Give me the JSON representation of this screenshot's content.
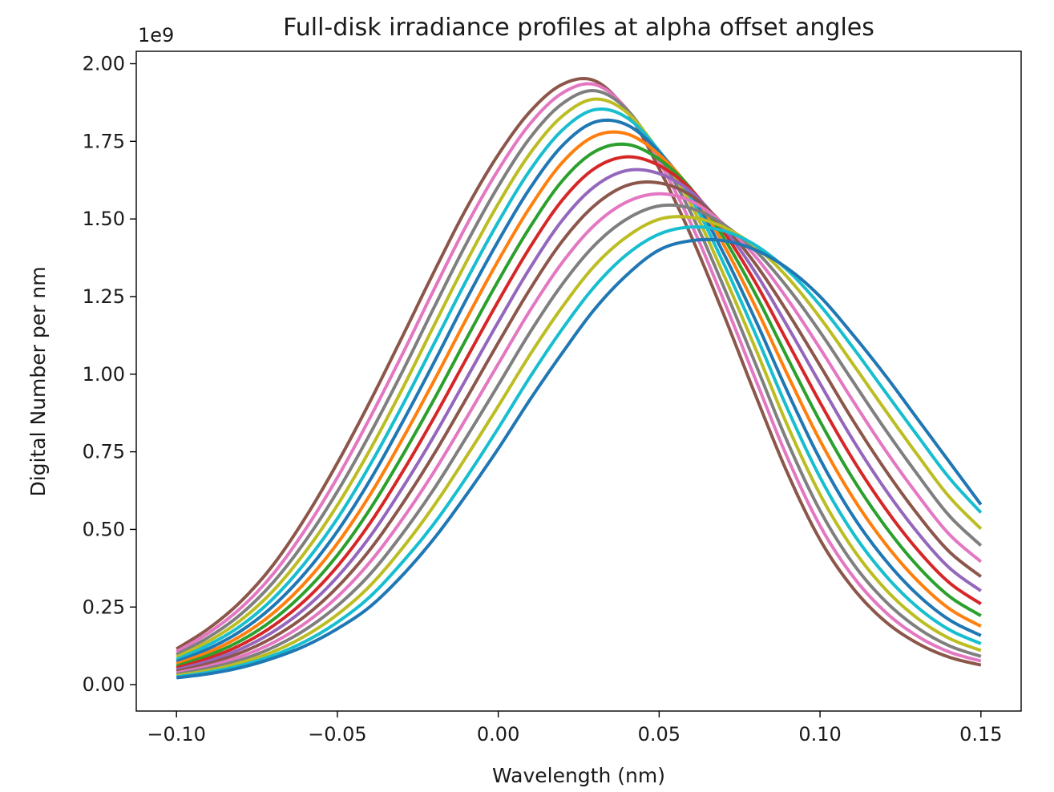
{
  "chart_data": {
    "type": "line",
    "title": "Full-disk irradiance profiles at alpha offset angles",
    "xlabel": "Wavelength (nm)",
    "ylabel": "Digital Number per nm",
    "y_scale_label": "1e9",
    "y_scale_factor": 1000000000,
    "xlim": [
      -0.1125,
      0.1625
    ],
    "ylim": [
      -0.085,
      2.04
    ],
    "x_ticks": [
      -0.1,
      -0.05,
      0.0,
      0.05,
      0.1,
      0.15
    ],
    "x_tick_labels": [
      "−0.10",
      "−0.05",
      "0.00",
      "0.05",
      "0.10",
      "0.15"
    ],
    "y_ticks": [
      0.0,
      0.25,
      0.5,
      0.75,
      1.0,
      1.25,
      1.5,
      1.75,
      2.0
    ],
    "y_tick_labels": [
      "0.00",
      "0.25",
      "0.50",
      "0.75",
      "1.00",
      "1.25",
      "1.50",
      "1.75",
      "2.00"
    ],
    "x_range": [
      -0.1,
      0.15
    ],
    "grid": false,
    "legend": "none",
    "colors": [
      "#1f77b4",
      "#ff7f0e",
      "#2ca02c",
      "#d62728",
      "#9467bd",
      "#8c564b",
      "#e377c2",
      "#7f7f7f",
      "#bcbd22",
      "#17becf"
    ],
    "series_x": [
      -0.1,
      -0.09,
      -0.08,
      -0.07,
      -0.06,
      -0.05,
      -0.04,
      -0.03,
      -0.02,
      -0.01,
      0.0,
      0.01,
      0.02,
      0.03,
      0.04,
      0.05,
      0.06,
      0.07,
      0.08,
      0.09,
      0.1,
      0.11,
      0.12,
      0.13,
      0.14,
      0.15
    ],
    "series": [
      {
        "color": "#1f77b4",
        "values": [
          0.022,
          0.035,
          0.055,
          0.085,
          0.125,
          0.18,
          0.25,
          0.35,
          0.47,
          0.61,
          0.76,
          0.92,
          1.07,
          1.21,
          1.32,
          1.4,
          1.43,
          1.43,
          1.4,
          1.34,
          1.25,
          1.13,
          1.0,
          0.86,
          0.72,
          0.58
        ]
      },
      {
        "color": "#17becf",
        "values": [
          0.025,
          0.04,
          0.062,
          0.094,
          0.139,
          0.201,
          0.282,
          0.392,
          0.518,
          0.666,
          0.826,
          0.993,
          1.147,
          1.283,
          1.386,
          1.451,
          1.474,
          1.462,
          1.415,
          1.334,
          1.222,
          1.089,
          0.947,
          0.806,
          0.668,
          0.554
        ]
      },
      {
        "color": "#bcbd22",
        "values": [
          0.029,
          0.046,
          0.071,
          0.106,
          0.157,
          0.226,
          0.317,
          0.437,
          0.576,
          0.733,
          0.897,
          1.065,
          1.218,
          1.35,
          1.443,
          1.499,
          1.505,
          1.474,
          1.41,
          1.311,
          1.182,
          1.036,
          0.888,
          0.744,
          0.607,
          0.502
        ]
      },
      {
        "color": "#7f7f7f",
        "values": [
          0.033,
          0.053,
          0.08,
          0.12,
          0.177,
          0.254,
          0.354,
          0.483,
          0.63,
          0.795,
          0.965,
          1.137,
          1.291,
          1.416,
          1.5,
          1.542,
          1.534,
          1.482,
          1.397,
          1.278,
          1.136,
          0.98,
          0.826,
          0.681,
          0.546,
          0.448
        ]
      },
      {
        "color": "#e377c2",
        "values": [
          0.038,
          0.06,
          0.091,
          0.135,
          0.198,
          0.283,
          0.393,
          0.53,
          0.685,
          0.857,
          1.033,
          1.207,
          1.361,
          1.481,
          1.555,
          1.581,
          1.557,
          1.484,
          1.378,
          1.24,
          1.083,
          0.918,
          0.76,
          0.616,
          0.486,
          0.396
        ]
      },
      {
        "color": "#8c564b",
        "values": [
          0.043,
          0.068,
          0.103,
          0.152,
          0.221,
          0.314,
          0.433,
          0.579,
          0.742,
          0.92,
          1.101,
          1.276,
          1.43,
          1.544,
          1.608,
          1.616,
          1.575,
          1.481,
          1.354,
          1.198,
          1.028,
          0.855,
          0.696,
          0.553,
          0.43,
          0.348
        ]
      },
      {
        "color": "#9467bd",
        "values": [
          0.048,
          0.076,
          0.115,
          0.17,
          0.246,
          0.347,
          0.475,
          0.63,
          0.8,
          0.984,
          1.168,
          1.344,
          1.497,
          1.605,
          1.656,
          1.646,
          1.587,
          1.473,
          1.326,
          1.152,
          0.97,
          0.792,
          0.633,
          0.494,
          0.378,
          0.302
        ]
      },
      {
        "color": "#d62728",
        "values": [
          0.054,
          0.085,
          0.128,
          0.189,
          0.272,
          0.381,
          0.518,
          0.681,
          0.859,
          1.048,
          1.235,
          1.411,
          1.562,
          1.663,
          1.7,
          1.672,
          1.594,
          1.46,
          1.294,
          1.102,
          0.909,
          0.729,
          0.572,
          0.438,
          0.33,
          0.26
        ]
      },
      {
        "color": "#2ca02c",
        "values": [
          0.06,
          0.095,
          0.142,
          0.209,
          0.3,
          0.417,
          0.563,
          0.734,
          0.918,
          1.112,
          1.301,
          1.476,
          1.624,
          1.717,
          1.74,
          1.692,
          1.596,
          1.441,
          1.257,
          1.05,
          0.848,
          0.667,
          0.514,
          0.386,
          0.286,
          0.222
        ]
      },
      {
        "color": "#ff7f0e",
        "values": [
          0.067,
          0.105,
          0.157,
          0.23,
          0.329,
          0.455,
          0.609,
          0.787,
          0.978,
          1.176,
          1.366,
          1.54,
          1.683,
          1.767,
          1.774,
          1.707,
          1.592,
          1.418,
          1.216,
          0.996,
          0.786,
          0.606,
          0.458,
          0.338,
          0.246,
          0.188
        ]
      },
      {
        "color": "#1f77b4",
        "values": [
          0.074,
          0.116,
          0.173,
          0.253,
          0.36,
          0.494,
          0.656,
          0.841,
          1.037,
          1.239,
          1.429,
          1.601,
          1.737,
          1.812,
          1.803,
          1.716,
          1.582,
          1.39,
          1.173,
          0.941,
          0.726,
          0.547,
          0.405,
          0.293,
          0.21,
          0.158
        ]
      },
      {
        "color": "#17becf",
        "values": [
          0.081,
          0.128,
          0.19,
          0.277,
          0.393,
          0.535,
          0.705,
          0.895,
          1.097,
          1.3,
          1.49,
          1.659,
          1.787,
          1.852,
          1.826,
          1.719,
          1.567,
          1.358,
          1.128,
          0.886,
          0.668,
          0.492,
          0.356,
          0.252,
          0.178,
          0.132
        ]
      },
      {
        "color": "#bcbd22",
        "values": [
          0.089,
          0.14,
          0.208,
          0.302,
          0.427,
          0.578,
          0.754,
          0.949,
          1.156,
          1.36,
          1.549,
          1.713,
          1.832,
          1.886,
          1.843,
          1.715,
          1.545,
          1.322,
          1.081,
          0.832,
          0.613,
          0.441,
          0.311,
          0.216,
          0.15,
          0.11
        ]
      },
      {
        "color": "#7f7f7f",
        "values": [
          0.097,
          0.153,
          0.227,
          0.329,
          0.462,
          0.622,
          0.805,
          1.004,
          1.214,
          1.419,
          1.605,
          1.763,
          1.872,
          1.913,
          1.852,
          1.704,
          1.517,
          1.283,
          1.032,
          0.779,
          0.561,
          0.394,
          0.272,
          0.185,
          0.126,
          0.091
        ]
      },
      {
        "color": "#e377c2",
        "values": [
          0.106,
          0.167,
          0.247,
          0.356,
          0.499,
          0.667,
          0.857,
          1.06,
          1.272,
          1.477,
          1.658,
          1.808,
          1.906,
          1.933,
          1.853,
          1.686,
          1.483,
          1.24,
          0.982,
          0.728,
          0.512,
          0.352,
          0.237,
          0.158,
          0.106,
          0.076
        ]
      },
      {
        "color": "#8c564b",
        "values": [
          0.115,
          0.181,
          0.268,
          0.385,
          0.537,
          0.714,
          0.909,
          1.117,
          1.329,
          1.532,
          1.707,
          1.847,
          1.934,
          1.945,
          1.847,
          1.662,
          1.444,
          1.194,
          0.931,
          0.679,
          0.467,
          0.314,
          0.206,
          0.135,
          0.089,
          0.063
        ]
      }
    ]
  }
}
